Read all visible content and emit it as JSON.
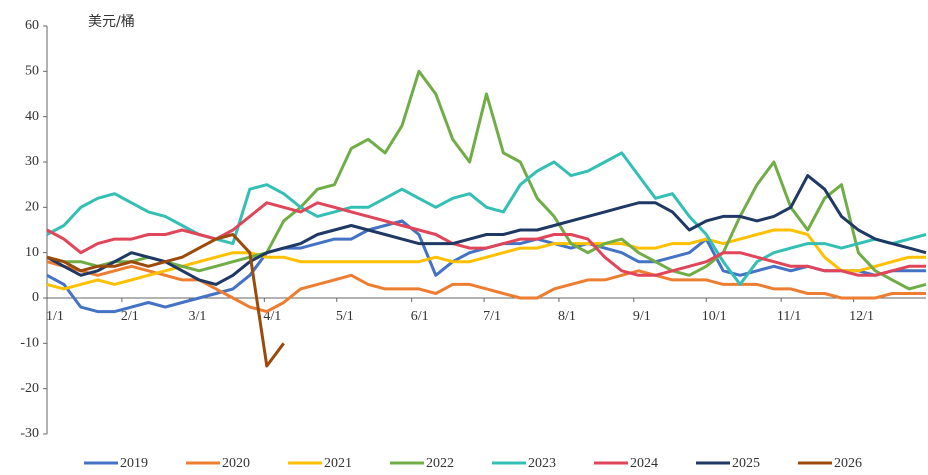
{
  "chart_data": {
    "type": "line",
    "y_label": "美元/桶",
    "x": [
      0,
      7,
      14,
      21,
      28,
      35,
      42,
      49,
      56,
      63,
      70,
      77,
      84,
      91,
      98,
      105,
      112,
      119,
      126,
      133,
      140,
      147,
      154,
      161,
      168,
      175,
      182,
      189,
      196,
      203,
      210,
      217,
      224,
      231,
      238,
      245,
      252,
      259,
      266,
      273,
      280,
      287,
      294,
      301,
      308,
      315,
      322,
      329,
      336,
      343,
      350,
      357,
      364
    ],
    "xlim": [
      0,
      364
    ],
    "xticks": [
      {
        "value": 0,
        "label": "1/1"
      },
      {
        "value": 31,
        "label": "2/1"
      },
      {
        "value": 59,
        "label": "3/1"
      },
      {
        "value": 90,
        "label": "4/1"
      },
      {
        "value": 120,
        "label": "5/1"
      },
      {
        "value": 151,
        "label": "6/1"
      },
      {
        "value": 181,
        "label": "7/1"
      },
      {
        "value": 212,
        "label": "8/1"
      },
      {
        "value": 243,
        "label": "9/1"
      },
      {
        "value": 273,
        "label": "10/1"
      },
      {
        "value": 304,
        "label": "11/1"
      },
      {
        "value": 334,
        "label": "12/1"
      }
    ],
    "ylim": [
      -30,
      60
    ],
    "yticks": [
      -30,
      -20,
      -10,
      0,
      10,
      20,
      30,
      40,
      50,
      60
    ],
    "legend": "bottom",
    "series": [
      {
        "name": "2019",
        "color": "#4472c4",
        "values": [
          5,
          3,
          -2,
          -3,
          -3,
          -2,
          -1,
          -2,
          -1,
          0,
          1,
          2,
          5,
          10,
          11,
          11,
          12,
          13,
          13,
          15,
          16,
          17,
          14,
          5,
          8,
          10,
          11,
          12,
          12,
          13,
          12,
          11,
          12,
          11,
          10,
          8,
          8,
          9,
          10,
          13,
          6,
          5,
          6,
          7,
          6,
          7,
          6,
          6,
          6,
          5,
          6,
          6,
          6
        ]
      },
      {
        "name": "2020",
        "color": "#ed7d31",
        "values": [
          8,
          7,
          6,
          5,
          6,
          7,
          6,
          5,
          4,
          4,
          2,
          0,
          -2,
          -3,
          -1,
          2,
          3,
          4,
          5,
          3,
          2,
          2,
          2,
          1,
          3,
          3,
          2,
          1,
          0,
          0,
          2,
          3,
          4,
          4,
          5,
          6,
          5,
          4,
          4,
          4,
          3,
          3,
          3,
          2,
          2,
          1,
          1,
          0,
          0,
          0,
          1,
          1,
          1
        ]
      },
      {
        "name": "2021",
        "color": "#ffc000",
        "values": [
          3,
          2,
          3,
          4,
          3,
          4,
          5,
          6,
          7,
          8,
          9,
          10,
          10,
          9,
          9,
          8,
          8,
          8,
          8,
          8,
          8,
          8,
          8,
          9,
          8,
          8,
          9,
          10,
          11,
          11,
          12,
          12,
          12,
          12,
          12,
          11,
          11,
          12,
          12,
          13,
          12,
          13,
          14,
          15,
          15,
          14,
          9,
          6,
          6,
          7,
          8,
          9,
          9
        ]
      },
      {
        "name": "2022",
        "color": "#70ad47",
        "values": [
          9,
          8,
          8,
          7,
          8,
          8,
          9,
          8,
          7,
          6,
          7,
          8,
          9,
          10,
          17,
          20,
          24,
          25,
          33,
          35,
          32,
          38,
          50,
          45,
          35,
          30,
          45,
          32,
          30,
          22,
          18,
          12,
          10,
          12,
          13,
          10,
          8,
          6,
          5,
          7,
          10,
          18,
          25,
          30,
          20,
          15,
          22,
          25,
          10,
          6,
          4,
          2,
          3
        ]
      },
      {
        "name": "2023",
        "color": "#33bfb4",
        "values": [
          14,
          16,
          20,
          22,
          23,
          21,
          19,
          18,
          16,
          14,
          13,
          12,
          24,
          25,
          23,
          20,
          18,
          19,
          20,
          20,
          22,
          24,
          22,
          20,
          22,
          23,
          20,
          19,
          25,
          28,
          30,
          27,
          28,
          30,
          32,
          27,
          22,
          23,
          18,
          14,
          8,
          3,
          8,
          10,
          11,
          12,
          12,
          11,
          12,
          13,
          12,
          13,
          14
        ]
      },
      {
        "name": "2024",
        "color": "#e0455a",
        "values": [
          15,
          13,
          10,
          12,
          13,
          13,
          14,
          14,
          15,
          14,
          13,
          15,
          18,
          21,
          20,
          19,
          21,
          20,
          19,
          18,
          17,
          16,
          15,
          14,
          12,
          11,
          11,
          12,
          13,
          13,
          14,
          14,
          13,
          9,
          6,
          5,
          5,
          6,
          7,
          8,
          10,
          10,
          9,
          8,
          7,
          7,
          6,
          6,
          5,
          5,
          6,
          7,
          7
        ]
      },
      {
        "name": "2025",
        "color": "#1f3864",
        "values": [
          9,
          7,
          5,
          6,
          8,
          10,
          9,
          8,
          6,
          4,
          3,
          5,
          8,
          10,
          11,
          12,
          14,
          15,
          16,
          15,
          14,
          13,
          12,
          12,
          12,
          13,
          14,
          14,
          15,
          15,
          16,
          17,
          18,
          19,
          20,
          21,
          21,
          19,
          15,
          17,
          18,
          18,
          17,
          18,
          20,
          27,
          24,
          18,
          15,
          13,
          12,
          11,
          10
        ]
      },
      {
        "name": "2026",
        "color": "#9c4a0c",
        "values": [
          9,
          8,
          6,
          7,
          7,
          8,
          7,
          8,
          9,
          11,
          13,
          14,
          10,
          -15,
          -10,
          null,
          null,
          null,
          null,
          null,
          null,
          null,
          null,
          null,
          null,
          null,
          null,
          null,
          null,
          null,
          null,
          null,
          null,
          null,
          null,
          null,
          null,
          null,
          null,
          null,
          null,
          null,
          null,
          null,
          null,
          null,
          null,
          null,
          null,
          null,
          null,
          null,
          null
        ]
      }
    ]
  }
}
